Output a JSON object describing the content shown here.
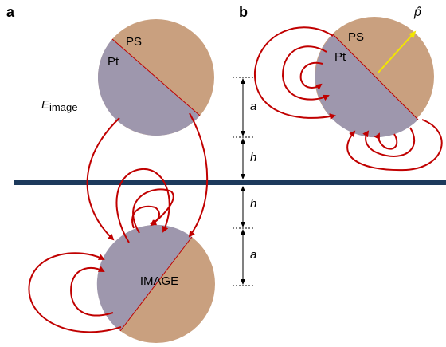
{
  "panel_a": {
    "label": "a",
    "cap_top": "PS",
    "cap_bottom": "Pt",
    "field_label": "E",
    "field_subscript": "image",
    "image_label": "IMAGE"
  },
  "panel_b": {
    "label": "b",
    "cap_top": "PS",
    "cap_bottom": "Pt",
    "orientation": "p̂"
  },
  "dimensions": [
    "a",
    "h",
    "h",
    "a"
  ]
}
